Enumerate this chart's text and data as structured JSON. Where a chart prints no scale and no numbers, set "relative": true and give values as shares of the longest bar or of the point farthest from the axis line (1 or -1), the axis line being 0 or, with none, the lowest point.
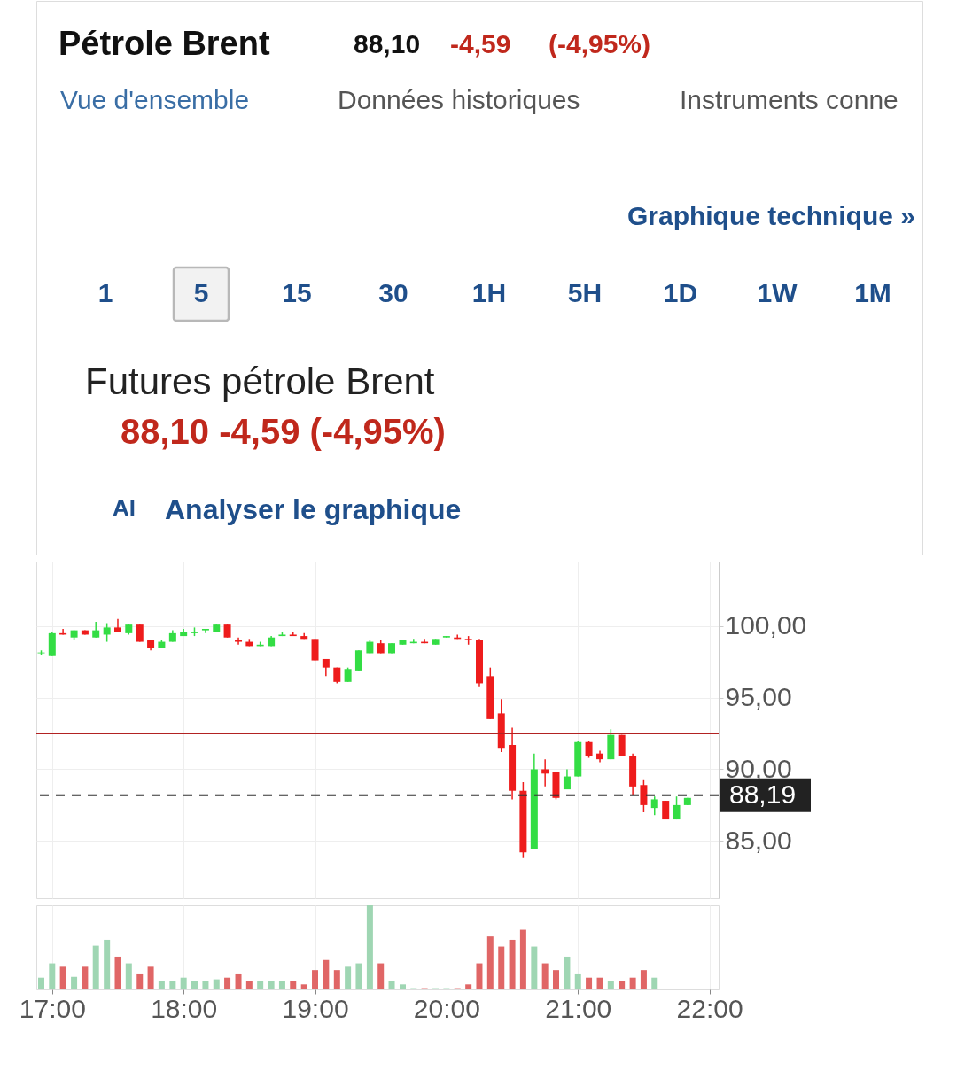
{
  "chart_data": [
    {
      "type": "candlestick",
      "title": "Futures pétrole Brent",
      "subtitle": "88,10 -4,59 (-4,95%)",
      "annotations": [
        "Pétrole Brent",
        "88,10",
        "-4,59",
        "(-4,95%)",
        "Vue d'ensemble",
        "Données historiques",
        "Instruments conne",
        "Graphique technique »",
        "1",
        "5",
        "15",
        "30",
        "1H",
        "5H",
        "1D",
        "1W",
        "1M",
        "AI",
        "Analyser le graphique"
      ],
      "x": [
        16.917,
        17,
        17.083,
        17.167,
        17.25,
        17.333,
        17.417,
        17.5,
        17.583,
        17.667,
        17.75,
        17.833,
        17.917,
        18,
        18.083,
        18.167,
        18.25,
        18.333,
        18.417,
        18.5,
        18.583,
        18.667,
        18.75,
        18.833,
        18.917,
        19,
        19.083,
        19.167,
        19.25,
        19.333,
        19.417,
        19.5,
        19.583,
        19.667,
        19.75,
        19.833,
        19.917,
        20,
        20.083,
        20.167,
        20.25,
        20.333,
        20.417,
        20.5,
        20.583,
        20.667,
        20.75,
        20.833,
        20.917,
        21,
        21.083,
        21.167,
        21.25,
        21.333,
        21.417,
        21.5,
        21.583,
        21.667,
        21.75,
        21.833
      ],
      "ohlc": [
        [
          98.1,
          98.3,
          98.0,
          98.15
        ],
        [
          97.9,
          99.6,
          97.9,
          99.5
        ],
        [
          99.5,
          99.8,
          99.4,
          99.4
        ],
        [
          99.2,
          99.7,
          99.0,
          99.7
        ],
        [
          99.7,
          99.7,
          99.4,
          99.4
        ],
        [
          99.2,
          100.3,
          99.2,
          99.7
        ],
        [
          99.4,
          100.2,
          98.9,
          99.9
        ],
        [
          99.9,
          100.5,
          99.6,
          99.6
        ],
        [
          99.5,
          100.1,
          99.4,
          100.1
        ],
        [
          100.1,
          100.1,
          98.9,
          98.9
        ],
        [
          99.0,
          99.0,
          98.3,
          98.5
        ],
        [
          98.5,
          99.0,
          98.5,
          98.9
        ],
        [
          98.9,
          99.7,
          98.9,
          99.5
        ],
        [
          99.3,
          99.8,
          99.3,
          99.6
        ],
        [
          99.5,
          99.9,
          99.3,
          99.6
        ],
        [
          99.7,
          99.8,
          99.5,
          99.8
        ],
        [
          99.6,
          100.1,
          99.6,
          100.1
        ],
        [
          100.1,
          100.1,
          99.2,
          99.2
        ],
        [
          99.0,
          99.2,
          98.7,
          98.9
        ],
        [
          98.9,
          99.1,
          98.6,
          98.6
        ],
        [
          98.6,
          98.9,
          98.6,
          98.7
        ],
        [
          98.6,
          99.3,
          98.6,
          99.2
        ],
        [
          99.3,
          99.6,
          99.3,
          99.4
        ],
        [
          99.4,
          99.6,
          99.3,
          99.3
        ],
        [
          99.3,
          99.5,
          99.1,
          99.1
        ],
        [
          99.1,
          99.1,
          97.6,
          97.6
        ],
        [
          97.7,
          97.7,
          96.5,
          97.1
        ],
        [
          97.1,
          97.1,
          96.0,
          96.1
        ],
        [
          96.1,
          97.1,
          96.1,
          97.0
        ],
        [
          96.9,
          98.3,
          96.9,
          98.3
        ],
        [
          98.1,
          99.0,
          98.1,
          98.9
        ],
        [
          98.8,
          99.0,
          98.1,
          98.1
        ],
        [
          98.1,
          98.8,
          98.1,
          98.8
        ],
        [
          98.7,
          99.0,
          98.7,
          99.0
        ],
        [
          98.8,
          99.1,
          98.8,
          98.9
        ],
        [
          98.9,
          99.1,
          98.8,
          98.8
        ],
        [
          98.7,
          99.1,
          98.7,
          99.1
        ],
        [
          99.2,
          99.3,
          99.2,
          99.3
        ],
        [
          99.2,
          99.4,
          99.1,
          99.1
        ],
        [
          99.1,
          99.3,
          98.7,
          99.0
        ],
        [
          99.0,
          99.1,
          95.8,
          96.0
        ],
        [
          96.5,
          97.1,
          93.5,
          93.5
        ],
        [
          93.9,
          94.9,
          91.2,
          91.5
        ],
        [
          91.7,
          92.9,
          87.9,
          88.5
        ],
        [
          88.5,
          89.1,
          83.8,
          84.2
        ],
        [
          84.4,
          91.1,
          84.4,
          90.0
        ],
        [
          90.0,
          90.7,
          88.8,
          89.7
        ],
        [
          89.8,
          89.8,
          87.9,
          88.0
        ],
        [
          88.6,
          90.0,
          88.6,
          89.5
        ],
        [
          89.5,
          92.0,
          89.5,
          91.9
        ],
        [
          91.9,
          92.0,
          90.8,
          90.9
        ],
        [
          91.1,
          91.3,
          90.5,
          90.7
        ],
        [
          90.7,
          92.8,
          90.7,
          92.4
        ],
        [
          92.4,
          92.4,
          90.9,
          90.9
        ],
        [
          90.9,
          91.1,
          88.2,
          88.8
        ],
        [
          88.9,
          89.3,
          87.0,
          87.5
        ],
        [
          87.3,
          88.1,
          86.8,
          87.9
        ],
        [
          87.8,
          87.8,
          86.5,
          86.5
        ],
        [
          86.5,
          88.1,
          86.5,
          87.5
        ],
        [
          87.5,
          88.0,
          87.5,
          88.0
        ]
      ],
      "colors": [
        "#33dd44",
        "#33dd44",
        "#ee1c1c",
        "#33dd44",
        "#ee1c1c",
        "#33dd44",
        "#33dd44",
        "#ee1c1c",
        "#33dd44",
        "#ee1c1c",
        "#ee1c1c",
        "#33dd44",
        "#33dd44",
        "#33dd44",
        "#33dd44",
        "#33dd44",
        "#33dd44",
        "#ee1c1c",
        "#ee1c1c",
        "#ee1c1c",
        "#33dd44",
        "#33dd44",
        "#33dd44",
        "#ee1c1c",
        "#ee1c1c",
        "#ee1c1c",
        "#ee1c1c",
        "#ee1c1c",
        "#33dd44",
        "#33dd44",
        "#33dd44",
        "#ee1c1c",
        "#33dd44",
        "#33dd44",
        "#33dd44",
        "#ee1c1c",
        "#33dd44",
        "#33dd44",
        "#ee1c1c",
        "#ee1c1c",
        "#ee1c1c",
        "#ee1c1c",
        "#ee1c1c",
        "#ee1c1c",
        "#ee1c1c",
        "#33dd44",
        "#ee1c1c",
        "#ee1c1c",
        "#33dd44",
        "#33dd44",
        "#ee1c1c",
        "#ee1c1c",
        "#33dd44",
        "#ee1c1c",
        "#ee1c1c",
        "#ee1c1c",
        "#33dd44",
        "#ee1c1c",
        "#33dd44",
        "#33dd44"
      ],
      "xlim": [
        16.88,
        22.07
      ],
      "ylim": [
        81,
        104.5
      ],
      "yticks": [
        {
          "value": 85,
          "label": "85,00"
        },
        {
          "value": 90,
          "label": "90,00"
        },
        {
          "value": 95,
          "label": "95,00"
        },
        {
          "value": 100,
          "label": "100,00"
        }
      ],
      "xticks": [
        17,
        18,
        19,
        20,
        21,
        22
      ],
      "tick_labels": "y",
      "grid": true,
      "ref_lines": [
        {
          "axis": "y",
          "value": 92.5,
          "color": "#b22222",
          "line_style": "solid"
        },
        {
          "axis": "y",
          "value": 88.19,
          "label": "88,19",
          "color": "#333333",
          "line_style": "dashed"
        }
      ]
    },
    {
      "type": "bar",
      "relative": true,
      "x": [
        16.917,
        17,
        17.083,
        17.167,
        17.25,
        17.333,
        17.417,
        17.5,
        17.583,
        17.667,
        17.75,
        17.833,
        17.917,
        18,
        18.083,
        18.167,
        18.25,
        18.333,
        18.417,
        18.5,
        18.583,
        18.667,
        18.75,
        18.833,
        18.917,
        19,
        19.083,
        19.167,
        19.25,
        19.333,
        19.417,
        19.5,
        19.583,
        19.667,
        19.75,
        19.833,
        19.917,
        20,
        20.083,
        20.167,
        20.25,
        20.333,
        20.417,
        20.5,
        20.583,
        20.667,
        20.75,
        20.833,
        20.917,
        21,
        21.083,
        21.167,
        21.25,
        21.333,
        21.417,
        21.5,
        21.583
      ],
      "values": [
        0.14,
        0.31,
        0.27,
        0.15,
        0.27,
        0.52,
        0.59,
        0.39,
        0.31,
        0.19,
        0.27,
        0.1,
        0.1,
        0.14,
        0.1,
        0.1,
        0.12,
        0.14,
        0.19,
        0.1,
        0.1,
        0.1,
        0.1,
        0.1,
        0.06,
        0.23,
        0.35,
        0.23,
        0.27,
        0.31,
        1,
        0.31,
        0.1,
        0.06,
        0.015,
        0.015,
        0.015,
        0.015,
        0.015,
        0.06,
        0.31,
        0.63,
        0.51,
        0.59,
        0.71,
        0.51,
        0.31,
        0.23,
        0.39,
        0.19,
        0.14,
        0.14,
        0.1,
        0.1,
        0.14,
        0.23,
        0.14
      ],
      "colors": [
        "#9fd6b3",
        "#9fd6b3",
        "#e06666",
        "#9fd6b3",
        "#e06666",
        "#9fd6b3",
        "#9fd6b3",
        "#e06666",
        "#9fd6b3",
        "#e06666",
        "#e06666",
        "#9fd6b3",
        "#9fd6b3",
        "#9fd6b3",
        "#9fd6b3",
        "#9fd6b3",
        "#9fd6b3",
        "#e06666",
        "#e06666",
        "#e06666",
        "#9fd6b3",
        "#9fd6b3",
        "#9fd6b3",
        "#e06666",
        "#e06666",
        "#e06666",
        "#e06666",
        "#e06666",
        "#9fd6b3",
        "#9fd6b3",
        "#9fd6b3",
        "#e06666",
        "#9fd6b3",
        "#9fd6b3",
        "#9fd6b3",
        "#e06666",
        "#9fd6b3",
        "#9fd6b3",
        "#e06666",
        "#e06666",
        "#e06666",
        "#e06666",
        "#e06666",
        "#e06666",
        "#e06666",
        "#9fd6b3",
        "#e06666",
        "#e06666",
        "#9fd6b3",
        "#9fd6b3",
        "#e06666",
        "#e06666",
        "#9fd6b3",
        "#e06666",
        "#e06666",
        "#e06666",
        "#9fd6b3"
      ],
      "xlim": [
        16.88,
        22.07
      ],
      "xticks": [
        {
          "value": 17,
          "label": "17:00"
        },
        {
          "value": 18,
          "label": "18:00"
        },
        {
          "value": 19,
          "label": "19:00"
        },
        {
          "value": 20,
          "label": "20:00"
        },
        {
          "value": 21,
          "label": "21:00"
        },
        {
          "value": 22,
          "label": "22:00"
        }
      ],
      "tick_labels": "x",
      "grid": "x"
    }
  ]
}
